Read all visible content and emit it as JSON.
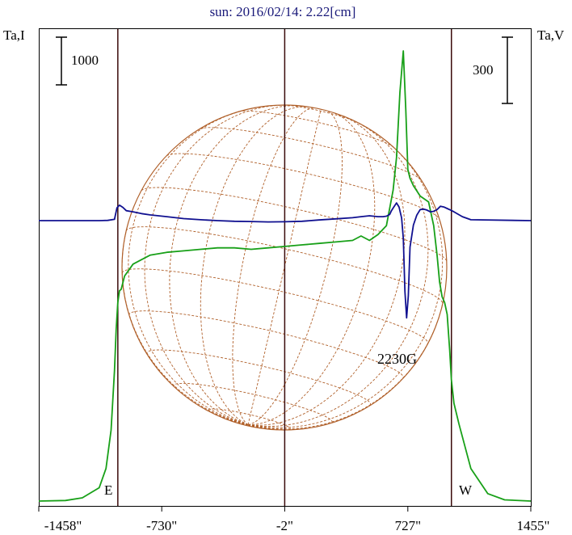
{
  "title": "sun: 2016/02/14: 2.22[cm]",
  "colors": {
    "title": "#1a1a7a",
    "frame": "#000000",
    "verticals": "#3a0a0a",
    "grid": "#b0602a",
    "intensity": "#18a018",
    "polarization": "#101090"
  },
  "chart_data": {
    "type": "line",
    "title": "sun: 2016/02/14: 2.22[cm]",
    "left_axis_label": "Ta,I",
    "right_axis_label": "Ta,V",
    "left_scale_bar": "1000",
    "right_scale_bar": "300",
    "x_tick_values": [
      -1458,
      -730,
      -2,
      727,
      1455
    ],
    "x_tick_labels": [
      "-1458\"",
      "-730\"",
      "-2\"",
      "727\"",
      "1455\""
    ],
    "xlim": [
      -1458,
      1455
    ],
    "reference_lines": [
      -990,
      -2,
      985
    ],
    "limb_labels": {
      "east": "E",
      "west": "W"
    },
    "annotation": "2230G",
    "series": [
      {
        "key": "I",
        "x": [
          -1458,
          -1300,
          -1200,
          -1100,
          -1060,
          -1030,
          -1010,
          -1000,
          -990,
          -980,
          -970,
          -950,
          -900,
          -850,
          -800,
          -700,
          -600,
          -500,
          -400,
          -300,
          -200,
          -100,
          0,
          100,
          200,
          300,
          400,
          450,
          500,
          550,
          600,
          640,
          660,
          680,
          700,
          715,
          727,
          740,
          760,
          800,
          850,
          880,
          900,
          915,
          930,
          945,
          960,
          975,
          985,
          1000,
          1030,
          1100,
          1200,
          1300,
          1455
        ],
        "y": [
          0,
          20,
          110,
          450,
          1100,
          2400,
          4400,
          5800,
          6700,
          7100,
          7150,
          7600,
          8000,
          8150,
          8300,
          8400,
          8450,
          8500,
          8550,
          8550,
          8500,
          8550,
          8600,
          8650,
          8700,
          8750,
          8800,
          8950,
          8800,
          9000,
          9300,
          10500,
          11600,
          13800,
          15200,
          13200,
          11200,
          10900,
          10650,
          10300,
          10100,
          9300,
          8300,
          7400,
          6900,
          6700,
          6300,
          5100,
          4100,
          3300,
          2600,
          1100,
          250,
          40,
          0
        ]
      },
      {
        "key": "V",
        "x": [
          -1458,
          -1100,
          -1050,
          -1010,
          -995,
          -980,
          -960,
          -940,
          -900,
          -850,
          -800,
          -700,
          -600,
          -500,
          -400,
          -300,
          -200,
          -100,
          0,
          100,
          200,
          300,
          400,
          450,
          500,
          550,
          580,
          600,
          620,
          630,
          645,
          660,
          675,
          690,
          700,
          710,
          720,
          730,
          740,
          760,
          780,
          800,
          820,
          840,
          860,
          880,
          900,
          920,
          940,
          960,
          980,
          1000,
          1050,
          1100,
          1455
        ],
        "y": [
          0,
          0,
          1,
          6,
          58,
          70,
          60,
          45,
          40,
          32,
          26,
          18,
          9,
          4,
          0,
          -3,
          -4,
          -6,
          -5,
          -3,
          3,
          8,
          13,
          18,
          22,
          18,
          18,
          20,
          28,
          45,
          63,
          80,
          62,
          12,
          -80,
          -320,
          -440,
          -340,
          -120,
          -20,
          25,
          50,
          52,
          48,
          40,
          42,
          50,
          65,
          62,
          55,
          48,
          40,
          18,
          4,
          0
        ]
      }
    ]
  }
}
